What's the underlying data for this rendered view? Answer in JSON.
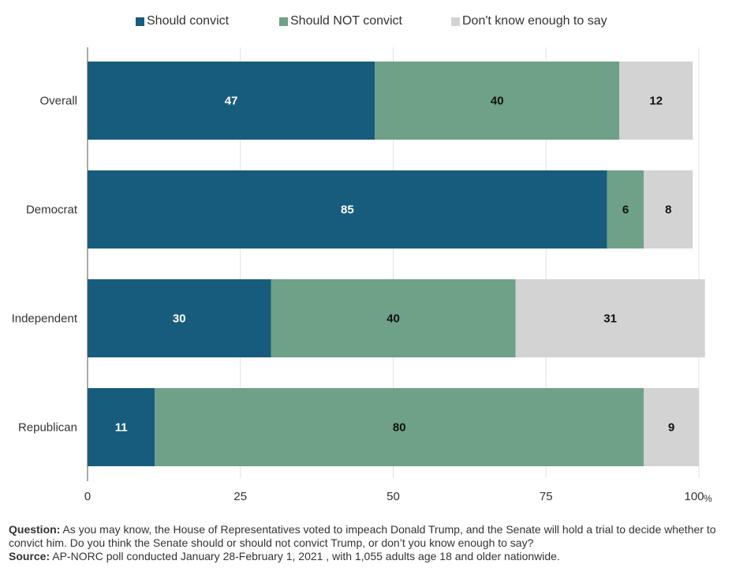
{
  "chart_data": {
    "type": "bar",
    "orientation": "horizontal",
    "stacked": true,
    "categories": [
      "Overall",
      "Democrat",
      "Independent",
      "Republican"
    ],
    "series": [
      {
        "name": "Should convict",
        "color": "#175c7d",
        "label_color": "#ffffff",
        "values": [
          47,
          85,
          30,
          11
        ]
      },
      {
        "name": "Should NOT convict",
        "color": "#6fa088",
        "label_color": "#111111",
        "values": [
          40,
          6,
          40,
          80
        ]
      },
      {
        "name": "Don't know enough to say",
        "color": "#d3d3d3",
        "label_color": "#111111",
        "values": [
          12,
          8,
          31,
          9
        ]
      }
    ],
    "xlim": [
      0,
      100
    ],
    "xticks": [
      0,
      25,
      50,
      75,
      100
    ],
    "x_unit": "%",
    "grid": true,
    "legend": "top"
  },
  "footnote": {
    "question_label": "Question:",
    "question_text": "As you may know, the House of Representatives voted to impeach Donald Trump, and the Senate will hold a trial to decide whether to convict him. Do you think the Senate should or should not convict Trump, or don’t you know enough to say?",
    "source_label": "Source:",
    "source_text": "AP-NORC poll conducted January 28-February 1, 2021 , with 1,055 adults age 18 and older nationwide."
  }
}
